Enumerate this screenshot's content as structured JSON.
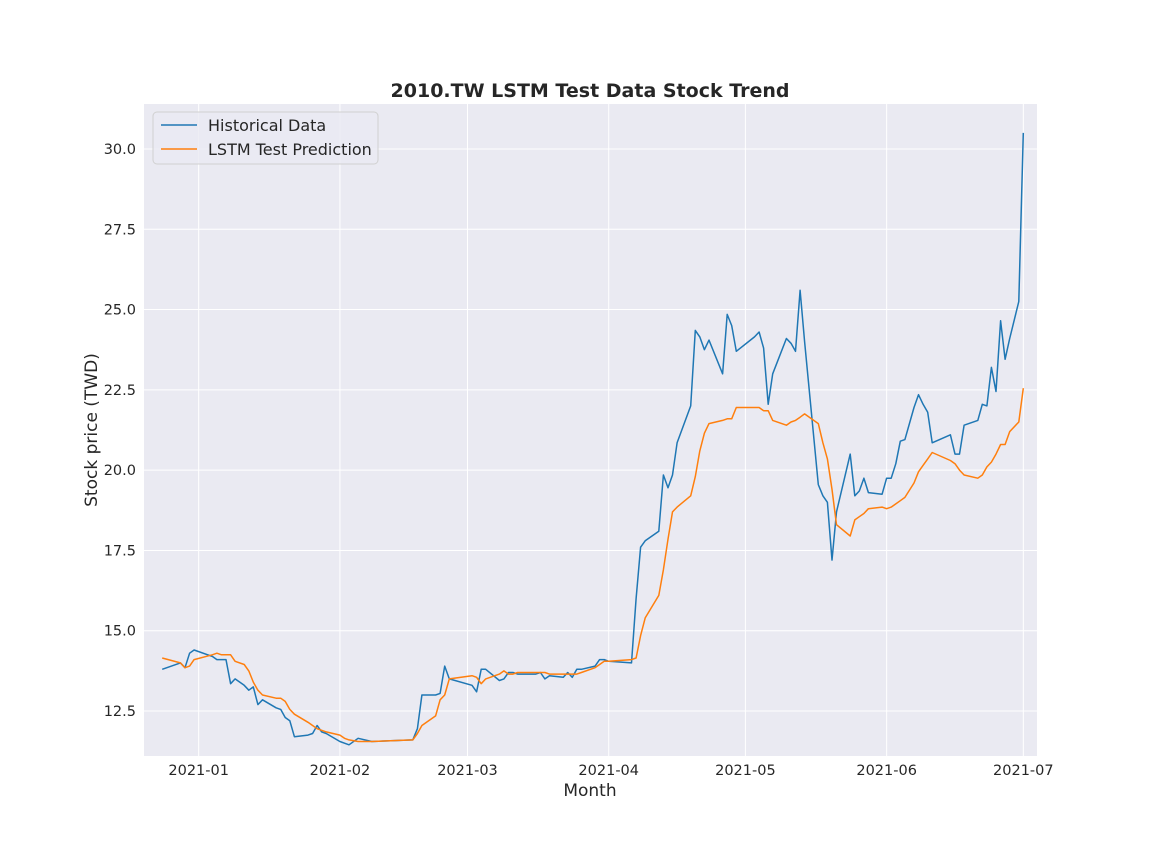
{
  "chart_data": {
    "type": "line",
    "title": "2010.TW  LSTM Test Data Stock Trend",
    "xlabel": "Month",
    "ylabel": "Stock price (TWD)",
    "x_axis": "date",
    "xlim": [
      "2020-12-20",
      "2021-07-04"
    ],
    "ylim": [
      11.1,
      31.4
    ],
    "x_ticks": [
      "2021-01-01",
      "2021-02-01",
      "2021-03-01",
      "2021-04-01",
      "2021-05-01",
      "2021-06-01",
      "2021-07-01"
    ],
    "x_tick_labels": [
      "2021-01",
      "2021-02",
      "2021-03",
      "2021-04",
      "2021-05",
      "2021-06",
      "2021-07"
    ],
    "y_ticks": [
      12.5,
      15.0,
      17.5,
      20.0,
      22.5,
      25.0,
      27.5,
      30.0
    ],
    "y_tick_labels": [
      "12.5",
      "15.0",
      "17.5",
      "20.0",
      "22.5",
      "25.0",
      "27.5",
      "30.0"
    ],
    "grid": true,
    "legend_position": "top-left",
    "colors": {
      "background": "#eaeaf2",
      "grid": "#ffffff"
    },
    "series": [
      {
        "name": "Historical Data",
        "color": "#1f77b4",
        "points": [
          [
            "2020-12-24",
            13.8
          ],
          [
            "2020-12-28",
            14.0
          ],
          [
            "2020-12-29",
            13.85
          ],
          [
            "2020-12-30",
            14.3
          ],
          [
            "2020-12-31",
            14.4
          ],
          [
            "2021-01-04",
            14.2
          ],
          [
            "2021-01-05",
            14.1
          ],
          [
            "2021-01-06",
            14.1
          ],
          [
            "2021-01-07",
            14.1
          ],
          [
            "2021-01-08",
            13.35
          ],
          [
            "2021-01-09",
            13.5
          ],
          [
            "2021-01-11",
            13.3
          ],
          [
            "2021-01-12",
            13.15
          ],
          [
            "2021-01-13",
            13.25
          ],
          [
            "2021-01-14",
            12.7
          ],
          [
            "2021-01-15",
            12.85
          ],
          [
            "2021-01-18",
            12.6
          ],
          [
            "2021-01-19",
            12.55
          ],
          [
            "2021-01-20",
            12.3
          ],
          [
            "2021-01-21",
            12.2
          ],
          [
            "2021-01-22",
            11.7
          ],
          [
            "2021-01-25",
            11.75
          ],
          [
            "2021-01-26",
            11.8
          ],
          [
            "2021-01-27",
            12.05
          ],
          [
            "2021-01-28",
            11.85
          ],
          [
            "2021-01-29",
            11.8
          ],
          [
            "2021-02-01",
            11.55
          ],
          [
            "2021-02-02",
            11.5
          ],
          [
            "2021-02-03",
            11.45
          ],
          [
            "2021-02-05",
            11.65
          ],
          [
            "2021-02-08",
            11.55
          ],
          [
            "2021-02-17",
            11.6
          ],
          [
            "2021-02-18",
            11.95
          ],
          [
            "2021-02-19",
            13.0
          ],
          [
            "2021-02-22",
            13.0
          ],
          [
            "2021-02-23",
            13.05
          ],
          [
            "2021-02-24",
            13.9
          ],
          [
            "2021-02-25",
            13.5
          ],
          [
            "2021-03-02",
            13.3
          ],
          [
            "2021-03-03",
            13.1
          ],
          [
            "2021-03-04",
            13.8
          ],
          [
            "2021-03-05",
            13.8
          ],
          [
            "2021-03-08",
            13.45
          ],
          [
            "2021-03-09",
            13.5
          ],
          [
            "2021-03-10",
            13.7
          ],
          [
            "2021-03-11",
            13.7
          ],
          [
            "2021-03-12",
            13.65
          ],
          [
            "2021-03-15",
            13.65
          ],
          [
            "2021-03-16",
            13.65
          ],
          [
            "2021-03-17",
            13.7
          ],
          [
            "2021-03-18",
            13.5
          ],
          [
            "2021-03-19",
            13.6
          ],
          [
            "2021-03-22",
            13.55
          ],
          [
            "2021-03-23",
            13.7
          ],
          [
            "2021-03-24",
            13.55
          ],
          [
            "2021-03-25",
            13.8
          ],
          [
            "2021-03-26",
            13.8
          ],
          [
            "2021-03-29",
            13.9
          ],
          [
            "2021-03-30",
            14.1
          ],
          [
            "2021-03-31",
            14.1
          ],
          [
            "2021-04-01",
            14.05
          ],
          [
            "2021-04-06",
            14.0
          ],
          [
            "2021-04-07",
            16.0
          ],
          [
            "2021-04-08",
            17.6
          ],
          [
            "2021-04-09",
            17.8
          ],
          [
            "2021-04-12",
            18.1
          ],
          [
            "2021-04-13",
            19.85
          ],
          [
            "2021-04-14",
            19.45
          ],
          [
            "2021-04-15",
            19.85
          ],
          [
            "2021-04-16",
            20.85
          ],
          [
            "2021-04-19",
            22.0
          ],
          [
            "2021-04-20",
            24.35
          ],
          [
            "2021-04-21",
            24.15
          ],
          [
            "2021-04-22",
            23.75
          ],
          [
            "2021-04-23",
            24.05
          ],
          [
            "2021-04-26",
            23.0
          ],
          [
            "2021-04-27",
            24.85
          ],
          [
            "2021-04-28",
            24.5
          ],
          [
            "2021-04-29",
            23.7
          ],
          [
            "2021-05-03",
            24.15
          ],
          [
            "2021-05-04",
            24.3
          ],
          [
            "2021-05-05",
            23.8
          ],
          [
            "2021-05-06",
            22.05
          ],
          [
            "2021-05-07",
            23.0
          ],
          [
            "2021-05-10",
            24.1
          ],
          [
            "2021-05-11",
            23.95
          ],
          [
            "2021-05-12",
            23.7
          ],
          [
            "2021-05-13",
            25.6
          ],
          [
            "2021-05-14",
            24.0
          ],
          [
            "2021-05-17",
            19.55
          ],
          [
            "2021-05-18",
            19.2
          ],
          [
            "2021-05-19",
            19.0
          ],
          [
            "2021-05-20",
            17.2
          ],
          [
            "2021-05-21",
            18.7
          ],
          [
            "2021-05-24",
            20.5
          ],
          [
            "2021-05-25",
            19.2
          ],
          [
            "2021-05-26",
            19.35
          ],
          [
            "2021-05-27",
            19.75
          ],
          [
            "2021-05-28",
            19.3
          ],
          [
            "2021-05-31",
            19.25
          ],
          [
            "2021-06-01",
            19.75
          ],
          [
            "2021-06-02",
            19.75
          ],
          [
            "2021-06-03",
            20.2
          ],
          [
            "2021-06-04",
            20.9
          ],
          [
            "2021-06-05",
            20.95
          ],
          [
            "2021-06-07",
            21.95
          ],
          [
            "2021-06-08",
            22.35
          ],
          [
            "2021-06-09",
            22.05
          ],
          [
            "2021-06-10",
            21.8
          ],
          [
            "2021-06-11",
            20.85
          ],
          [
            "2021-06-15",
            21.1
          ],
          [
            "2021-06-16",
            20.5
          ],
          [
            "2021-06-17",
            20.5
          ],
          [
            "2021-06-18",
            21.4
          ],
          [
            "2021-06-21",
            21.55
          ],
          [
            "2021-06-22",
            22.05
          ],
          [
            "2021-06-23",
            22.0
          ],
          [
            "2021-06-24",
            23.2
          ],
          [
            "2021-06-25",
            22.45
          ],
          [
            "2021-06-26",
            24.65
          ],
          [
            "2021-06-27",
            23.45
          ],
          [
            "2021-06-28",
            24.1
          ],
          [
            "2021-06-30",
            25.25
          ],
          [
            "2021-07-01",
            30.5
          ]
        ]
      },
      {
        "name": "LSTM Test Prediction",
        "color": "#ff7f0e",
        "points": [
          [
            "2020-12-24",
            14.15
          ],
          [
            "2020-12-28",
            14.0
          ],
          [
            "2020-12-29",
            13.85
          ],
          [
            "2020-12-30",
            13.9
          ],
          [
            "2020-12-31",
            14.1
          ],
          [
            "2021-01-04",
            14.25
          ],
          [
            "2021-01-05",
            14.3
          ],
          [
            "2021-01-06",
            14.25
          ],
          [
            "2021-01-07",
            14.25
          ],
          [
            "2021-01-08",
            14.25
          ],
          [
            "2021-01-09",
            14.05
          ],
          [
            "2021-01-11",
            13.95
          ],
          [
            "2021-01-12",
            13.75
          ],
          [
            "2021-01-13",
            13.4
          ],
          [
            "2021-01-14",
            13.15
          ],
          [
            "2021-01-15",
            13.0
          ],
          [
            "2021-01-18",
            12.9
          ],
          [
            "2021-01-19",
            12.9
          ],
          [
            "2021-01-20",
            12.8
          ],
          [
            "2021-01-21",
            12.55
          ],
          [
            "2021-01-22",
            12.4
          ],
          [
            "2021-01-25",
            12.15
          ],
          [
            "2021-01-26",
            12.05
          ],
          [
            "2021-01-27",
            11.95
          ],
          [
            "2021-01-28",
            11.9
          ],
          [
            "2021-01-29",
            11.85
          ],
          [
            "2021-02-01",
            11.75
          ],
          [
            "2021-02-02",
            11.65
          ],
          [
            "2021-02-03",
            11.6
          ],
          [
            "2021-02-05",
            11.55
          ],
          [
            "2021-02-08",
            11.55
          ],
          [
            "2021-02-17",
            11.6
          ],
          [
            "2021-02-18",
            11.8
          ],
          [
            "2021-02-19",
            12.05
          ],
          [
            "2021-02-22",
            12.35
          ],
          [
            "2021-02-23",
            12.85
          ],
          [
            "2021-02-24",
            13.0
          ],
          [
            "2021-02-25",
            13.5
          ],
          [
            "2021-03-02",
            13.6
          ],
          [
            "2021-03-03",
            13.55
          ],
          [
            "2021-03-04",
            13.35
          ],
          [
            "2021-03-05",
            13.5
          ],
          [
            "2021-03-08",
            13.65
          ],
          [
            "2021-03-09",
            13.75
          ],
          [
            "2021-03-10",
            13.65
          ],
          [
            "2021-03-11",
            13.65
          ],
          [
            "2021-03-12",
            13.7
          ],
          [
            "2021-03-15",
            13.7
          ],
          [
            "2021-03-16",
            13.7
          ],
          [
            "2021-03-17",
            13.7
          ],
          [
            "2021-03-18",
            13.7
          ],
          [
            "2021-03-19",
            13.65
          ],
          [
            "2021-03-22",
            13.65
          ],
          [
            "2021-03-23",
            13.65
          ],
          [
            "2021-03-24",
            13.65
          ],
          [
            "2021-03-25",
            13.65
          ],
          [
            "2021-03-26",
            13.7
          ],
          [
            "2021-03-29",
            13.85
          ],
          [
            "2021-03-30",
            13.95
          ],
          [
            "2021-03-31",
            14.05
          ],
          [
            "2021-04-01",
            14.05
          ],
          [
            "2021-04-06",
            14.1
          ],
          [
            "2021-04-07",
            14.15
          ],
          [
            "2021-04-08",
            14.85
          ],
          [
            "2021-04-09",
            15.4
          ],
          [
            "2021-04-12",
            16.1
          ],
          [
            "2021-04-13",
            16.9
          ],
          [
            "2021-04-14",
            17.85
          ],
          [
            "2021-04-15",
            18.7
          ],
          [
            "2021-04-16",
            18.85
          ],
          [
            "2021-04-19",
            19.2
          ],
          [
            "2021-04-20",
            19.8
          ],
          [
            "2021-04-21",
            20.6
          ],
          [
            "2021-04-22",
            21.15
          ],
          [
            "2021-04-23",
            21.45
          ],
          [
            "2021-04-26",
            21.55
          ],
          [
            "2021-04-27",
            21.6
          ],
          [
            "2021-04-28",
            21.6
          ],
          [
            "2021-04-29",
            21.95
          ],
          [
            "2021-05-03",
            21.95
          ],
          [
            "2021-05-04",
            21.95
          ],
          [
            "2021-05-05",
            21.85
          ],
          [
            "2021-05-06",
            21.85
          ],
          [
            "2021-05-07",
            21.55
          ],
          [
            "2021-05-10",
            21.4
          ],
          [
            "2021-05-11",
            21.5
          ],
          [
            "2021-05-12",
            21.55
          ],
          [
            "2021-05-13",
            21.65
          ],
          [
            "2021-05-14",
            21.75
          ],
          [
            "2021-05-17",
            21.45
          ],
          [
            "2021-05-18",
            20.85
          ],
          [
            "2021-05-19",
            20.35
          ],
          [
            "2021-05-20",
            19.4
          ],
          [
            "2021-05-21",
            18.3
          ],
          [
            "2021-05-24",
            17.95
          ],
          [
            "2021-05-25",
            18.45
          ],
          [
            "2021-05-26",
            18.55
          ],
          [
            "2021-05-27",
            18.65
          ],
          [
            "2021-05-28",
            18.8
          ],
          [
            "2021-05-31",
            18.85
          ],
          [
            "2021-06-01",
            18.8
          ],
          [
            "2021-06-02",
            18.85
          ],
          [
            "2021-06-03",
            18.95
          ],
          [
            "2021-06-04",
            19.05
          ],
          [
            "2021-06-05",
            19.15
          ],
          [
            "2021-06-07",
            19.6
          ],
          [
            "2021-06-08",
            19.95
          ],
          [
            "2021-06-09",
            20.15
          ],
          [
            "2021-06-10",
            20.35
          ],
          [
            "2021-06-11",
            20.55
          ],
          [
            "2021-06-15",
            20.3
          ],
          [
            "2021-06-16",
            20.2
          ],
          [
            "2021-06-17",
            20.0
          ],
          [
            "2021-06-18",
            19.85
          ],
          [
            "2021-06-21",
            19.75
          ],
          [
            "2021-06-22",
            19.85
          ],
          [
            "2021-06-23",
            20.1
          ],
          [
            "2021-06-24",
            20.25
          ],
          [
            "2021-06-25",
            20.5
          ],
          [
            "2021-06-26",
            20.8
          ],
          [
            "2021-06-27",
            20.8
          ],
          [
            "2021-06-28",
            21.2
          ],
          [
            "2021-06-30",
            21.5
          ],
          [
            "2021-07-01",
            22.55
          ]
        ]
      }
    ]
  }
}
